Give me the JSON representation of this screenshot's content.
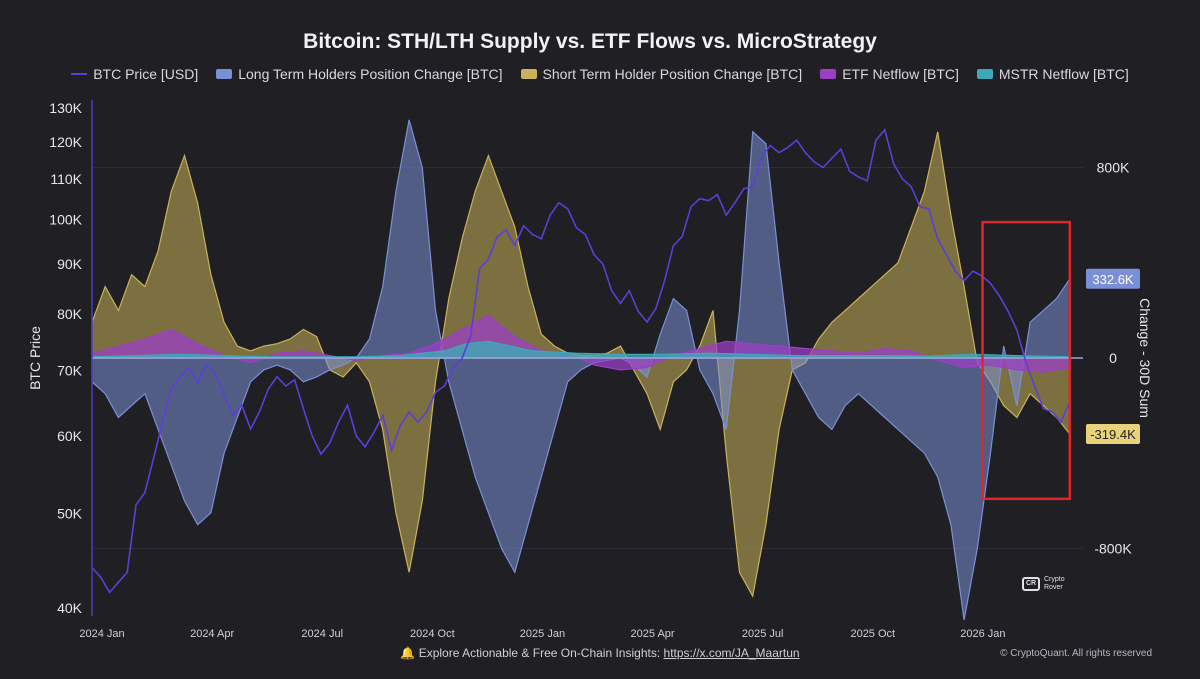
{
  "chart_data": {
    "type": "area",
    "title": "Bitcoin: STH/LTH Supply vs. ETF Flows vs. MicroStrategy",
    "y_left_label": "BTC Price",
    "y_right_label": "Change - 30D Sum",
    "y_left_scale": "log",
    "y_left_range": [
      40000,
      130000
    ],
    "y_left_ticks": [
      {
        "value": 130000,
        "label": "130K"
      },
      {
        "value": 120000,
        "label": "120K"
      },
      {
        "value": 110000,
        "label": "110K"
      },
      {
        "value": 100000,
        "label": "100K"
      },
      {
        "value": 90000,
        "label": "90K"
      },
      {
        "value": 80000,
        "label": "80K"
      },
      {
        "value": 70000,
        "label": "70K"
      },
      {
        "value": 60000,
        "label": "60K"
      },
      {
        "value": 50000,
        "label": "50K"
      },
      {
        "value": 40000,
        "label": "40K"
      }
    ],
    "y_right_range": [
      -1200000,
      1200000
    ],
    "y_right_ticks": [
      {
        "value": 800000,
        "label": "800K"
      },
      {
        "value": 0,
        "label": "0"
      },
      {
        "value": -800000,
        "label": "-800K"
      }
    ],
    "x_range": [
      2024.0,
      2026.25
    ],
    "x_ticks": [
      {
        "value": 2024.0,
        "label": "2024 Jan"
      },
      {
        "value": 2024.25,
        "label": "2024 Apr"
      },
      {
        "value": 2024.5,
        "label": "2024 Jul"
      },
      {
        "value": 2024.75,
        "label": "2024 Oct"
      },
      {
        "value": 2025.0,
        "label": "2025 Jan"
      },
      {
        "value": 2025.25,
        "label": "2025 Apr"
      },
      {
        "value": 2025.5,
        "label": "2025 Jul"
      },
      {
        "value": 2025.75,
        "label": "2025 Oct"
      },
      {
        "value": 2026.0,
        "label": "2026 Jan"
      }
    ],
    "series": [
      {
        "name": "BTC Price [USD]",
        "axis": "left",
        "style": "line",
        "color": "#5b3fd6",
        "x": [
          2024.0,
          2024.02,
          2024.04,
          2024.06,
          2024.08,
          2024.1,
          2024.12,
          2024.14,
          2024.16,
          2024.18,
          2024.2,
          2024.22,
          2024.24,
          2024.26,
          2024.28,
          2024.3,
          2024.32,
          2024.34,
          2024.36,
          2024.38,
          2024.4,
          2024.42,
          2024.44,
          2024.46,
          2024.48,
          2024.5,
          2024.52,
          2024.54,
          2024.56,
          2024.58,
          2024.6,
          2024.62,
          2024.64,
          2024.66,
          2024.68,
          2024.7,
          2024.72,
          2024.74,
          2024.76,
          2024.78,
          2024.8,
          2024.82,
          2024.84,
          2024.86,
          2024.88,
          2024.9,
          2024.92,
          2024.94,
          2024.96,
          2024.98,
          2025.0,
          2025.02,
          2025.04,
          2025.06,
          2025.08,
          2025.1,
          2025.12,
          2025.14,
          2025.16,
          2025.18,
          2025.2,
          2025.22,
          2025.24,
          2025.26,
          2025.28,
          2025.3,
          2025.32,
          2025.34,
          2025.36,
          2025.38,
          2025.4,
          2025.42,
          2025.44,
          2025.46,
          2025.48,
          2025.5,
          2025.52,
          2025.54,
          2025.56,
          2025.58,
          2025.6,
          2025.62,
          2025.64,
          2025.66,
          2025.68,
          2025.7,
          2025.72,
          2025.74,
          2025.76,
          2025.78,
          2025.8,
          2025.82,
          2025.84,
          2025.86,
          2025.88,
          2025.9,
          2025.92,
          2025.94,
          2025.96,
          2025.98,
          2026.0,
          2026.02,
          2026.04,
          2026.06,
          2026.08,
          2026.1,
          2026.12,
          2026.14,
          2026.16,
          2026.18,
          2026.2,
          2026.22
        ],
        "values": [
          44000,
          43000,
          41500,
          42500,
          43500,
          51000,
          52500,
          57000,
          62000,
          67000,
          69000,
          70500,
          68000,
          71000,
          69500,
          66000,
          63000,
          64500,
          61000,
          63500,
          67000,
          69000,
          67500,
          68500,
          64000,
          60000,
          57500,
          59000,
          62000,
          64500,
          60000,
          58500,
          60500,
          63000,
          58000,
          61500,
          63500,
          62000,
          63500,
          66500,
          67500,
          70500,
          72000,
          76000,
          89000,
          91000,
          96000,
          97500,
          94000,
          98500,
          96500,
          95500,
          101000,
          104000,
          102500,
          98000,
          96500,
          92000,
          90000,
          84500,
          82000,
          84500,
          80500,
          78500,
          81000,
          86500,
          94000,
          96000,
          103000,
          105000,
          104500,
          106000,
          101000,
          104000,
          107500,
          108000,
          116000,
          119000,
          117000,
          118500,
          120500,
          117000,
          114500,
          113000,
          115500,
          118000,
          112000,
          110500,
          109500,
          120500,
          123500,
          114000,
          110000,
          108000,
          103000,
          102500,
          95500,
          92000,
          88500,
          86500,
          88500,
          87500,
          86000,
          83500,
          80500,
          77000,
          71500,
          67500,
          64000,
          63500,
          62000,
          65000
        ],
        "values_note": "approximate daily-close trend read from left axis"
      },
      {
        "name": "Long Term Holders Position Change [BTC]",
        "axis": "right",
        "style": "area",
        "color": "#7b8fd6",
        "x": [
          2024.0,
          2024.03,
          2024.06,
          2024.09,
          2024.12,
          2024.15,
          2024.18,
          2024.21,
          2024.24,
          2024.27,
          2024.3,
          2024.33,
          2024.36,
          2024.39,
          2024.42,
          2024.45,
          2024.48,
          2024.51,
          2024.54,
          2024.57,
          2024.6,
          2024.63,
          2024.66,
          2024.69,
          2024.72,
          2024.75,
          2024.78,
          2024.81,
          2024.84,
          2024.87,
          2024.9,
          2024.93,
          2024.96,
          2024.99,
          2025.02,
          2025.05,
          2025.08,
          2025.11,
          2025.14,
          2025.17,
          2025.2,
          2025.23,
          2025.26,
          2025.29,
          2025.32,
          2025.35,
          2025.38,
          2025.41,
          2025.44,
          2025.47,
          2025.5,
          2025.53,
          2025.56,
          2025.59,
          2025.62,
          2025.65,
          2025.68,
          2025.71,
          2025.74,
          2025.77,
          2025.8,
          2025.83,
          2025.86,
          2025.89,
          2025.92,
          2025.95,
          2025.98,
          2026.01,
          2026.04,
          2026.07,
          2026.1,
          2026.13,
          2026.16,
          2026.19,
          2026.22
        ],
        "values": [
          -100000,
          -150000,
          -250000,
          -200000,
          -150000,
          -300000,
          -450000,
          -600000,
          -700000,
          -650000,
          -400000,
          -250000,
          -100000,
          -50000,
          -30000,
          -50000,
          -100000,
          -80000,
          -50000,
          -30000,
          0,
          80000,
          300000,
          700000,
          1000000,
          800000,
          200000,
          -100000,
          -300000,
          -500000,
          -650000,
          -800000,
          -900000,
          -700000,
          -500000,
          -300000,
          -100000,
          -50000,
          -20000,
          -10000,
          0,
          -30000,
          -80000,
          100000,
          250000,
          200000,
          -50000,
          -150000,
          -300000,
          200000,
          950000,
          900000,
          400000,
          -50000,
          -150000,
          -250000,
          -300000,
          -200000,
          -150000,
          -200000,
          -250000,
          -300000,
          -350000,
          -400000,
          -500000,
          -700000,
          -1100000,
          -800000,
          -400000,
          50000,
          -200000,
          150000,
          200000,
          250000,
          332600
        ]
      },
      {
        "name": "Short Term Holder Position Change [BTC]",
        "axis": "right",
        "style": "area",
        "color": "#c9b25a",
        "x": [
          2024.0,
          2024.03,
          2024.06,
          2024.09,
          2024.12,
          2024.15,
          2024.18,
          2024.21,
          2024.24,
          2024.27,
          2024.3,
          2024.33,
          2024.36,
          2024.39,
          2024.42,
          2024.45,
          2024.48,
          2024.51,
          2024.54,
          2024.57,
          2024.6,
          2024.63,
          2024.66,
          2024.69,
          2024.72,
          2024.75,
          2024.78,
          2024.81,
          2024.84,
          2024.87,
          2024.9,
          2024.93,
          2024.96,
          2024.99,
          2025.02,
          2025.05,
          2025.08,
          2025.11,
          2025.14,
          2025.17,
          2025.2,
          2025.23,
          2025.26,
          2025.29,
          2025.32,
          2025.35,
          2025.38,
          2025.41,
          2025.44,
          2025.47,
          2025.5,
          2025.53,
          2025.56,
          2025.59,
          2025.62,
          2025.65,
          2025.68,
          2025.71,
          2025.74,
          2025.77,
          2025.8,
          2025.83,
          2025.86,
          2025.89,
          2025.92,
          2025.95,
          2025.98,
          2026.01,
          2026.04,
          2026.07,
          2026.1,
          2026.13,
          2026.16,
          2026.19,
          2026.22
        ],
        "values": [
          150000,
          300000,
          200000,
          350000,
          300000,
          450000,
          700000,
          850000,
          650000,
          350000,
          150000,
          50000,
          30000,
          50000,
          60000,
          80000,
          120000,
          90000,
          -50000,
          -80000,
          -20000,
          -100000,
          -300000,
          -650000,
          -900000,
          -600000,
          -100000,
          250000,
          500000,
          700000,
          850000,
          700000,
          550000,
          300000,
          100000,
          50000,
          20000,
          10000,
          10000,
          20000,
          50000,
          -50000,
          -150000,
          -300000,
          -100000,
          -50000,
          50000,
          200000,
          -400000,
          -900000,
          -1000000,
          -700000,
          -300000,
          -50000,
          -20000,
          80000,
          150000,
          200000,
          250000,
          300000,
          350000,
          400000,
          550000,
          700000,
          950000,
          600000,
          300000,
          -20000,
          -100000,
          -200000,
          -250000,
          -150000,
          -200000,
          -250000,
          -319400
        ]
      },
      {
        "name": "ETF Netflow [BTC]",
        "axis": "right",
        "style": "area",
        "color": "#9b3fc4",
        "x": [
          2024.0,
          2024.06,
          2024.12,
          2024.18,
          2024.24,
          2024.3,
          2024.36,
          2024.42,
          2024.48,
          2024.54,
          2024.6,
          2024.66,
          2024.72,
          2024.78,
          2024.84,
          2024.9,
          2024.96,
          2025.02,
          2025.08,
          2025.14,
          2025.2,
          2025.26,
          2025.32,
          2025.38,
          2025.44,
          2025.5,
          2025.56,
          2025.62,
          2025.68,
          2025.74,
          2025.8,
          2025.86,
          2025.92,
          2025.98,
          2026.04,
          2026.1,
          2026.16,
          2026.22
        ],
        "values": [
          20000,
          50000,
          80000,
          120000,
          60000,
          10000,
          -20000,
          20000,
          30000,
          10000,
          -10000,
          10000,
          20000,
          60000,
          120000,
          180000,
          90000,
          30000,
          20000,
          -30000,
          -50000,
          -40000,
          10000,
          40000,
          70000,
          60000,
          50000,
          40000,
          30000,
          20000,
          40000,
          30000,
          -10000,
          -40000,
          -30000,
          -50000,
          -60000,
          -40000
        ]
      },
      {
        "name": "MSTR Netflow [BTC]",
        "axis": "right",
        "style": "area",
        "color": "#3fa8b8",
        "x": [
          2024.0,
          2024.1,
          2024.2,
          2024.3,
          2024.4,
          2024.5,
          2024.6,
          2024.7,
          2024.8,
          2024.85,
          2024.9,
          2024.95,
          2025.0,
          2025.1,
          2025.2,
          2025.3,
          2025.4,
          2025.5,
          2025.6,
          2025.7,
          2025.8,
          2025.9,
          2026.0,
          2026.1,
          2026.22
        ],
        "values": [
          5000,
          10000,
          15000,
          10000,
          5000,
          5000,
          5000,
          10000,
          30000,
          60000,
          70000,
          50000,
          30000,
          20000,
          15000,
          15000,
          20000,
          15000,
          10000,
          10000,
          10000,
          8000,
          15000,
          10000,
          5000
        ]
      }
    ],
    "annotations": [
      {
        "type": "value-tag",
        "series": "Long Term Holders Position Change [BTC]",
        "value": 332600,
        "label": "332.6K"
      },
      {
        "type": "value-tag",
        "series": "Short Term Holder Position Change [BTC]",
        "value": -319400,
        "label": "-319.4K"
      },
      {
        "type": "highlight-box",
        "x_range": [
          2026.04,
          2026.22
        ],
        "y_range": [
          -600000,
          600000
        ],
        "color": "#e0262b"
      }
    ],
    "legend_position": "top-center"
  },
  "legend": {
    "items": [
      {
        "label": "BTC Price [USD]",
        "color": "#5b3fd6",
        "kind": "line"
      },
      {
        "label": "Long Term Holders Position Change [BTC]",
        "color": "#7b8fd6",
        "kind": "area"
      },
      {
        "label": "Short Term Holder Position Change [BTC]",
        "color": "#c9b25a",
        "kind": "area"
      },
      {
        "label": "ETF Netflow [BTC]",
        "color": "#9b3fc4",
        "kind": "area"
      },
      {
        "label": "MSTR Netflow [BTC]",
        "color": "#3fa8b8",
        "kind": "area"
      }
    ]
  },
  "footer": {
    "text": "Explore Actionable & Free On-Chain Insights:",
    "link": "https://x.com/JA_Maartun",
    "icon": "bell-icon"
  },
  "copyright": "© CryptoQuant. All rights reserved",
  "watermark": {
    "line1": "Crypto",
    "line2": "Rover"
  }
}
